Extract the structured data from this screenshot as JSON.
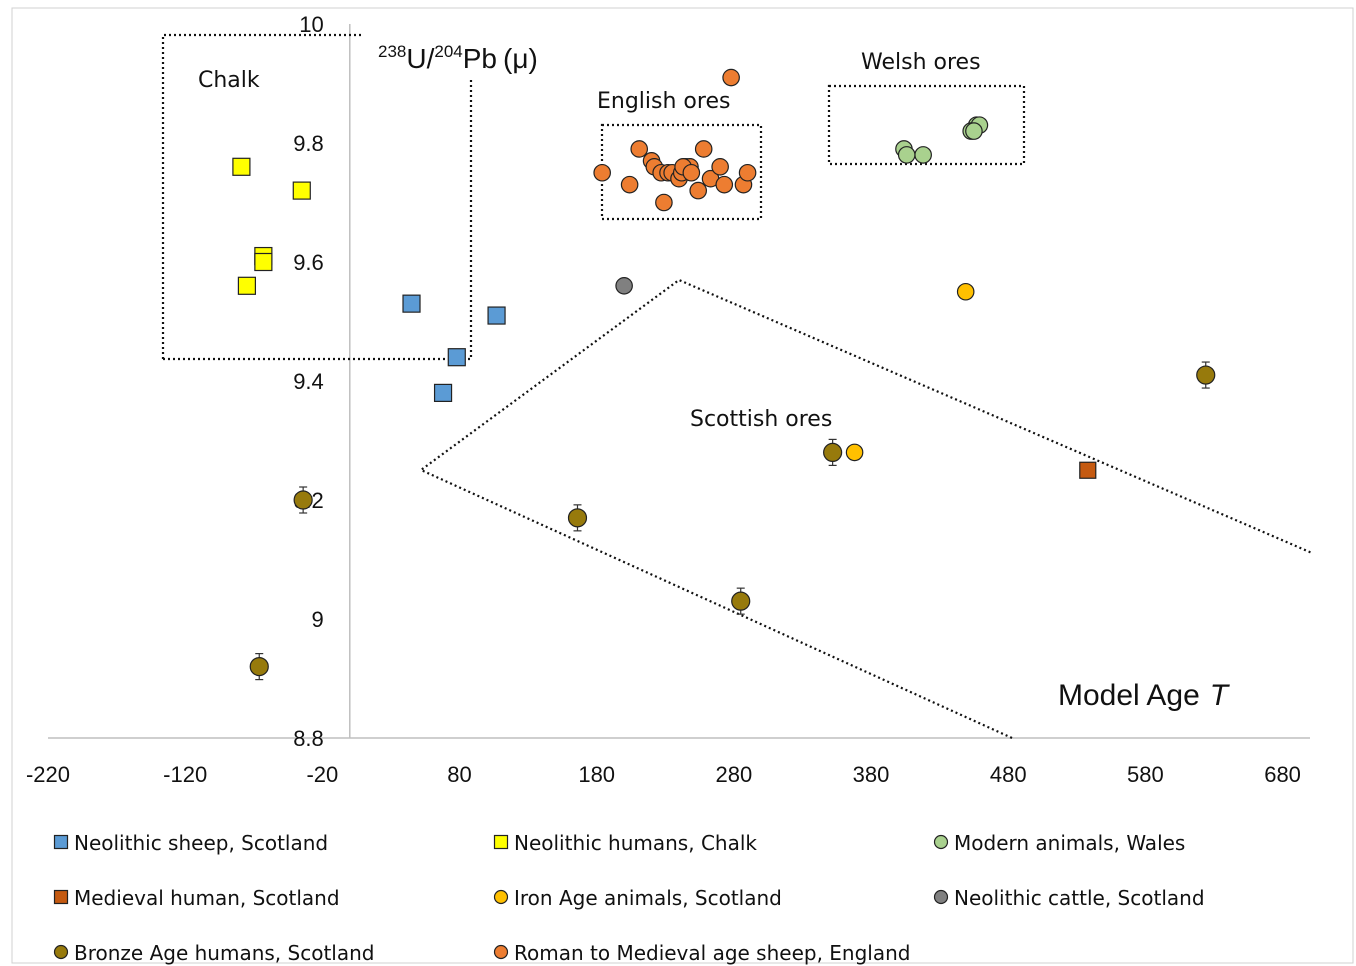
{
  "chart_data": {
    "type": "scatter",
    "xlabel_text": "Model Age",
    "xlabel_var": "T",
    "ylabel": {
      "iso1": "238",
      "el1": "U/",
      "iso2": "204",
      "el2": "Pb",
      "suffix": "(μ)"
    },
    "xlim": [
      -220,
      700
    ],
    "ylim": [
      8.8,
      10.0
    ],
    "x_ticks": [
      "-220",
      "-120",
      "-20",
      "80",
      "180",
      "280",
      "380",
      "480",
      "580",
      "680"
    ],
    "y_ticks": [
      "8.8",
      "9",
      "9.2",
      "9.4",
      "9.6",
      "9.8",
      "10"
    ],
    "grid": false,
    "legend_position": "bottom",
    "regions": [
      {
        "label": "Chalk",
        "polygon": [
          [
            -133,
            9.98
          ],
          [
            -1,
            9.98
          ]
        ]
      },
      {
        "label": "English ores"
      },
      {
        "label": "Welsh ores"
      },
      {
        "label": "Scottish ores"
      }
    ],
    "series": [
      {
        "name": "Neolithic  sheep, Scotland",
        "marker": "square",
        "color": "#5b9bd5",
        "x": [
          45,
          68,
          78,
          107
        ],
        "y": [
          9.53,
          9.38,
          9.44,
          9.51
        ]
      },
      {
        "name": "Neolithic humans, Chalk",
        "marker": "square",
        "color": "#ffff00",
        "x": [
          -79,
          -63,
          -75,
          -35,
          -63
        ],
        "y": [
          9.76,
          9.61,
          9.56,
          9.72,
          9.6
        ]
      },
      {
        "name": "Modern animals,  Wales",
        "marker": "circle",
        "color": "#a9d18e",
        "x": [
          418,
          404,
          457,
          406,
          453,
          459,
          455
        ],
        "y": [
          9.78,
          9.79,
          9.83,
          9.78,
          9.82,
          9.83,
          9.82
        ]
      },
      {
        "name": "Medieval human, Scotland",
        "marker": "square",
        "color": "#c55a11",
        "x": [
          538
        ],
        "y": [
          9.25
        ]
      },
      {
        "name": " Iron Age animals, Scotland",
        "marker": "circle",
        "color": "#ffc000",
        "x": [
          449,
          368
        ],
        "y": [
          9.55,
          9.28
        ]
      },
      {
        "name": "Neolithic cattle, Scotland",
        "marker": "circle",
        "color": "#808080",
        "x": [
          200
        ],
        "y": [
          9.56
        ]
      },
      {
        "name": "Bronze Age humans, Scotland",
        "marker": "circle",
        "color": "#977a0c",
        "x": [
          -66,
          -34,
          166,
          285,
          352,
          624
        ],
        "y": [
          8.92,
          9.2,
          9.17,
          9.03,
          9.28,
          9.41
        ]
      },
      {
        "name": "Roman to Medieval age sheep, England",
        "marker": "circle",
        "color": "#ed7d31",
        "x": [
          184,
          204,
          211,
          220,
          222,
          229,
          227,
          232,
          235,
          240,
          242,
          245,
          248,
          243,
          249,
          254,
          263,
          258,
          270,
          278,
          273,
          287,
          290
        ],
        "y": [
          9.75,
          9.73,
          9.79,
          9.77,
          9.76,
          9.7,
          9.75,
          9.75,
          9.75,
          9.74,
          9.75,
          9.76,
          9.76,
          9.76,
          9.75,
          9.72,
          9.74,
          9.79,
          9.76,
          9.91,
          9.73,
          9.73,
          9.75
        ]
      }
    ]
  }
}
